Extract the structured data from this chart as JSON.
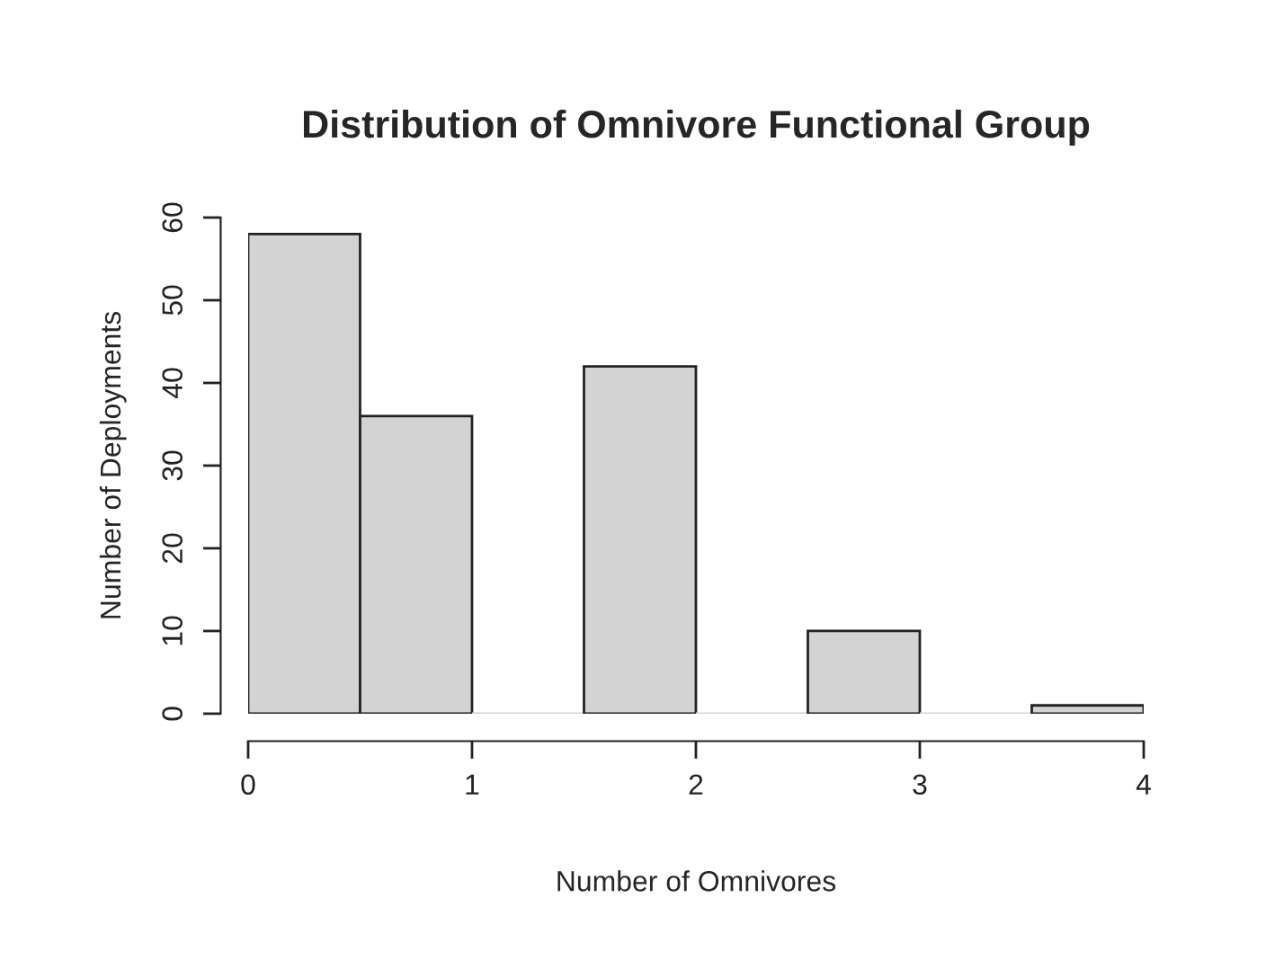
{
  "chart_data": {
    "type": "histogram",
    "title": "Distribution of Omnivore Functional Group",
    "xlabel": "Number of Omnivores",
    "ylabel": "Number of Deployments",
    "bins": [
      0,
      0.5,
      1,
      1.5,
      2,
      2.5,
      3,
      3.5,
      4
    ],
    "values": [
      58,
      36,
      0,
      42,
      0,
      10,
      0,
      1
    ],
    "color": "#d3d3d3",
    "xlim": [
      0,
      4
    ],
    "xticks": [
      0,
      1,
      2,
      3,
      4
    ],
    "ylim": [
      0,
      60
    ],
    "yticks": [
      0,
      10,
      20,
      30,
      40,
      50,
      60
    ],
    "grid": false
  }
}
